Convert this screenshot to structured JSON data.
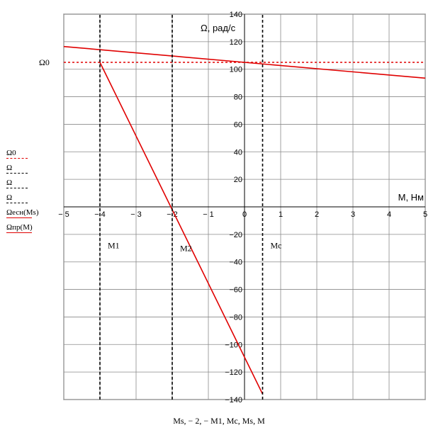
{
  "chart_data": {
    "type": "line",
    "x_axis_title": "M, Нм",
    "y_axis_title": "Ω, рад/с",
    "x_bottom_label": "Ms, − 2, − M1, Mc, Ms, M",
    "xlim": [
      -5,
      5
    ],
    "ylim": [
      -140,
      140
    ],
    "x_ticks": [
      -5,
      -4,
      -3,
      -2,
      -1,
      0,
      1,
      2,
      3,
      4,
      5
    ],
    "y_ticks": [
      -140,
      -120,
      -100,
      -80,
      -60,
      -40,
      -20,
      20,
      40,
      60,
      80,
      100,
      120,
      140
    ],
    "grid": true,
    "series": [
      {
        "name": "Ωесн(Ms)",
        "color": "#e00000",
        "style": "solid",
        "x": [
          -5,
          5
        ],
        "y": [
          116.5,
          93.5
        ]
      },
      {
        "name": "Ωпр(M)",
        "color": "#e00000",
        "style": "solid",
        "x": [
          -4,
          0.5
        ],
        "y": [
          105,
          -136
        ]
      },
      {
        "name": "Ω0",
        "color": "#e00000",
        "style": "dotted",
        "x": [
          -5,
          5
        ],
        "y": [
          105,
          105
        ]
      },
      {
        "name": "Ω",
        "color": "#000000",
        "style": "dashed",
        "x": [
          -4,
          -4
        ],
        "y": [
          -140,
          140
        ]
      },
      {
        "name": "Ω",
        "color": "#000000",
        "style": "dashed",
        "x": [
          -2,
          -2
        ],
        "y": [
          -140,
          140
        ]
      },
      {
        "name": "Ω",
        "color": "#000000",
        "style": "dashed",
        "x": [
          0.5,
          0.5
        ],
        "y": [
          -140,
          140
        ]
      }
    ],
    "annotations": [
      {
        "text": "M1",
        "x": -4,
        "y": -28
      },
      {
        "text": "M2",
        "x": -2,
        "y": -30
      },
      {
        "text": "Mc",
        "x": 0.5,
        "y": -28
      }
    ],
    "omega0_label": "Ω0",
    "omega0_value": 105,
    "legend_placement": "left"
  }
}
